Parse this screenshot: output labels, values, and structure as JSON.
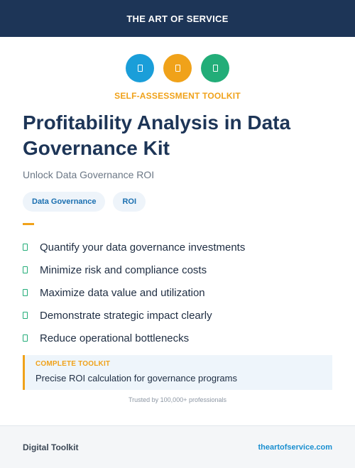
{
  "header": {
    "brand": "THE ART OF SERVICE"
  },
  "icons": [
    {
      "name": "blue-badge-icon",
      "color": "#1a9ed9"
    },
    {
      "name": "orange-badge-icon",
      "color": "#f0a21a"
    },
    {
      "name": "green-badge-icon",
      "color": "#22ad78"
    }
  ],
  "kicker": "SELF-ASSESSMENT TOOLKIT",
  "title": "Profitability Analysis in Data Governance Kit",
  "subtitle": "Unlock Data Governance ROI",
  "tags": [
    "Data Governance",
    "ROI"
  ],
  "features": [
    "Quantify your data governance investments",
    "Minimize risk and compliance costs",
    "Maximize data value and utilization",
    "Demonstrate strategic impact clearly",
    "Reduce operational bottlenecks"
  ],
  "callout": {
    "kicker": "COMPLETE TOOLKIT",
    "text": "Precise ROI calculation for governance programs"
  },
  "trusted": "Trusted by 100,000+ professionals",
  "footer": {
    "left": "Digital Toolkit",
    "right": "theartofservice.com"
  },
  "colors": {
    "navy": "#1d3557",
    "accent_orange": "#f0a21a",
    "blue": "#1a9ed9",
    "green": "#22ad78"
  }
}
